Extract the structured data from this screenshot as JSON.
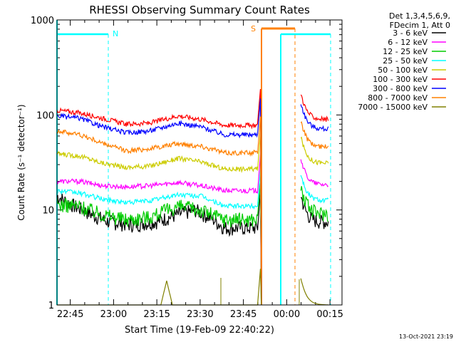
{
  "chart_data": {
    "type": "line",
    "title": "RHESSI Observing Summary Count Rates",
    "xlabel": "Start Time (19-Feb-09 22:40:22)",
    "ylabel": "Count Rate (s⁻¹ detector⁻¹)",
    "y_scale": "log",
    "ylim": [
      1,
      1000
    ],
    "yticks": [
      {
        "value": 1,
        "label": "1"
      },
      {
        "value": 10,
        "label": "10"
      },
      {
        "value": 100,
        "label": "100"
      },
      {
        "value": 1000,
        "label": "1000"
      }
    ],
    "x_range": [
      "22:40:22",
      "00:18:00"
    ],
    "xticks": [
      "22:45",
      "23:00",
      "23:15",
      "23:30",
      "23:45",
      "00:00",
      "00:15"
    ],
    "legend_header": [
      "Det 1,3,4,5,6,9,",
      "FDecim 1, Att 0"
    ],
    "legend_position": "right",
    "series": [
      {
        "name": "3 - 6 keV",
        "color": "#000000",
        "values": [
          [
            0,
            14
          ],
          [
            6,
            11
          ],
          [
            12,
            9
          ],
          [
            18,
            7.5
          ],
          [
            26,
            7
          ],
          [
            34,
            7.5
          ],
          [
            42,
            9
          ],
          [
            48,
            10
          ],
          [
            54,
            8
          ],
          [
            58,
            6.5
          ]
        ]
      },
      {
        "name": "6 - 12 keV",
        "color": "#ff00ff",
        "values": [
          [
            0,
            20
          ],
          [
            8,
            20
          ],
          [
            16,
            18
          ],
          [
            24,
            17.5
          ],
          [
            32,
            18
          ],
          [
            42,
            19.5
          ],
          [
            50,
            18
          ],
          [
            58,
            16
          ]
        ]
      },
      {
        "name": "12 - 25 keV",
        "color": "#00cc00",
        "values": [
          [
            0,
            11.5
          ],
          [
            8,
            11
          ],
          [
            16,
            9
          ],
          [
            24,
            8
          ],
          [
            32,
            8.5
          ],
          [
            42,
            11
          ],
          [
            50,
            10
          ],
          [
            58,
            8
          ]
        ]
      },
      {
        "name": "25 - 50 keV",
        "color": "#00ffff",
        "values": [
          [
            0,
            16
          ],
          [
            8,
            15
          ],
          [
            16,
            13
          ],
          [
            24,
            12
          ],
          [
            32,
            12.5
          ],
          [
            42,
            14.5
          ],
          [
            50,
            14
          ],
          [
            58,
            11
          ]
        ]
      },
      {
        "name": "50 - 100 keV",
        "color": "#cccc00",
        "values": [
          [
            0,
            39
          ],
          [
            8,
            37
          ],
          [
            16,
            31
          ],
          [
            24,
            28
          ],
          [
            32,
            29
          ],
          [
            42,
            35
          ],
          [
            50,
            32
          ],
          [
            58,
            27
          ]
        ]
      },
      {
        "name": "100 - 300 keV",
        "color": "#ff0000",
        "values": [
          [
            0,
            112
          ],
          [
            8,
            105
          ],
          [
            16,
            92
          ],
          [
            24,
            80
          ],
          [
            32,
            82
          ],
          [
            42,
            98
          ],
          [
            50,
            90
          ],
          [
            58,
            78
          ]
        ]
      },
      {
        "name": "300 - 800 keV",
        "color": "#0000ff",
        "values": [
          [
            0,
            98
          ],
          [
            8,
            92
          ],
          [
            16,
            75
          ],
          [
            24,
            65
          ],
          [
            32,
            68
          ],
          [
            42,
            82
          ],
          [
            50,
            75
          ],
          [
            58,
            62
          ]
        ]
      },
      {
        "name": "800 - 7000 keV",
        "color": "#ff8000",
        "values": [
          [
            0,
            68
          ],
          [
            8,
            62
          ],
          [
            16,
            50
          ],
          [
            24,
            42
          ],
          [
            32,
            44
          ],
          [
            42,
            50
          ],
          [
            50,
            47
          ],
          [
            58,
            40
          ]
        ]
      },
      {
        "name": "7000 - 15000 keV",
        "color": "#808000",
        "values": [
          [
            0,
            1
          ],
          [
            36,
            1
          ],
          [
            38,
            1.8
          ],
          [
            40,
            1
          ],
          [
            58,
            1
          ]
        ]
      }
    ],
    "annotations": [
      {
        "label": "N",
        "color": "#00ffff"
      },
      {
        "label": "S",
        "color": "#ff8000"
      }
    ],
    "footer_date": "13-Oct-2021 23:19",
    "grid": false
  }
}
